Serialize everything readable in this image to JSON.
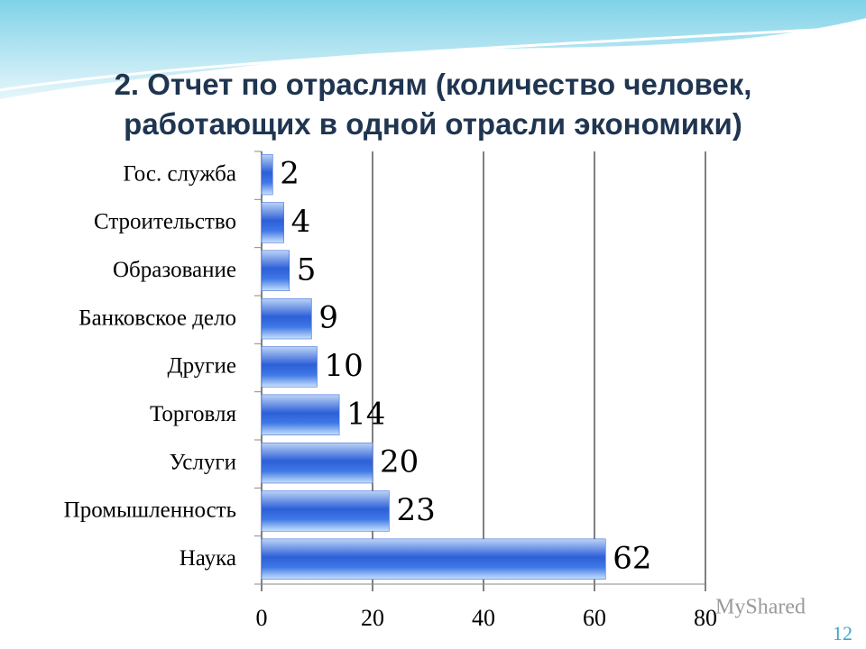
{
  "chart_data": {
    "type": "barh",
    "title": "2. Отчет по отраслям (количество человек, работающих в одной отрасли экономики)",
    "categories": [
      "Гос. служба",
      "Строительство",
      "Образование",
      "Банковское дело",
      "Другие",
      "Торговля",
      "Услуги",
      "Промышленность",
      "Наука"
    ],
    "values": [
      2,
      4,
      5,
      9,
      10,
      14,
      20,
      23,
      62
    ],
    "color": "#2a5bd7",
    "xlim": [
      0,
      80
    ],
    "xticks": [
      0,
      20,
      40,
      60,
      80
    ],
    "grid": true
  },
  "watermark": "MyShared",
  "slide_number": "12"
}
